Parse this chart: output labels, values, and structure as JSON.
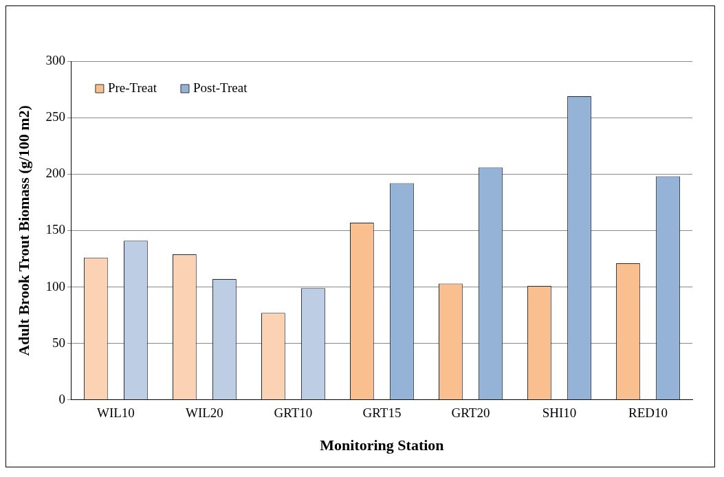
{
  "chart_data": {
    "type": "bar",
    "xlabel": "Monitoring Station",
    "ylabel": "Adult Brook Trout Biomass (g/100 m2)",
    "categories": [
      "WIL10",
      "WIL20",
      "GRT10",
      "GRT15",
      "GRT20",
      "SHI10",
      "RED10"
    ],
    "series": [
      {
        "name": "Pre-Treat",
        "color": "#f9bf8f",
        "colors": [
          "#fbd3b4",
          "#fbd3b4",
          "#fbd3b4",
          "#f9bf8f",
          "#f9bf8f",
          "#f9bf8f",
          "#f9bf8f"
        ],
        "values": [
          126,
          129,
          77,
          157,
          103,
          101,
          121
        ]
      },
      {
        "name": "Post-Treat",
        "color": "#95b3d7",
        "colors": [
          "#bccde4",
          "#bccde4",
          "#bccde4",
          "#95b3d7",
          "#95b3d7",
          "#95b3d7",
          "#95b3d7"
        ],
        "values": [
          141,
          107,
          99,
          192,
          206,
          269,
          198
        ]
      }
    ],
    "ylim": [
      0,
      300
    ],
    "yticks": [
      0,
      50,
      100,
      150,
      200,
      250,
      300
    ],
    "grid": "y",
    "legend": "top left"
  }
}
